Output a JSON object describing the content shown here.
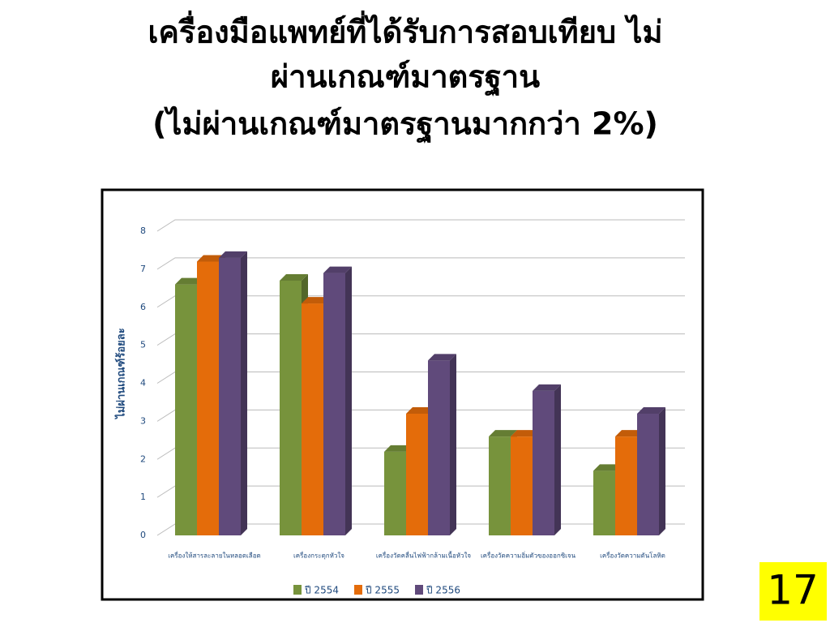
{
  "chart_data": {
    "type": "bar3d",
    "title": [
      "เครื่องมือแพทย์ที่ได้รับการสอบเทียบ ไม่",
      "ผ่านเกณฑ์มาตรฐาน"
    ],
    "subtitle": "(ไม่ผ่านเกณฑ์มาตรฐานมากกว่า 2%)",
    "y_label": "ไม่ผ่านเกณฑ์ร้อยละ",
    "categories": [
      "เครื่องให้สารละลายในหลอดเลือด",
      "เครื่องกระตุกหัวใจ",
      "เครื่องวัดคลื่นไฟฟ้ากล้ามเนื้อหัวใจ",
      "เครื่องวัดความอิ่มตัวของออกซิเจน",
      "เครื่องวัดความดันโลหิต"
    ],
    "series": [
      {
        "name": "ปี 2554",
        "color": "#77933c",
        "values": [
          6.6,
          6.7,
          2.2,
          2.6,
          1.7
        ]
      },
      {
        "name": "ปี 2555",
        "color": "#e46c0a",
        "values": [
          7.2,
          6.1,
          3.2,
          2.6,
          2.6
        ]
      },
      {
        "name": "ปี 2556",
        "color": "#604a7b",
        "values": [
          7.3,
          6.9,
          4.6,
          3.8,
          3.2
        ]
      }
    ],
    "ylim": [
      0,
      8
    ],
    "yticks": [
      0,
      1,
      2,
      3,
      4,
      5,
      6,
      7,
      8
    ],
    "grid": true,
    "legend": "bottom"
  },
  "slide_number": "17"
}
